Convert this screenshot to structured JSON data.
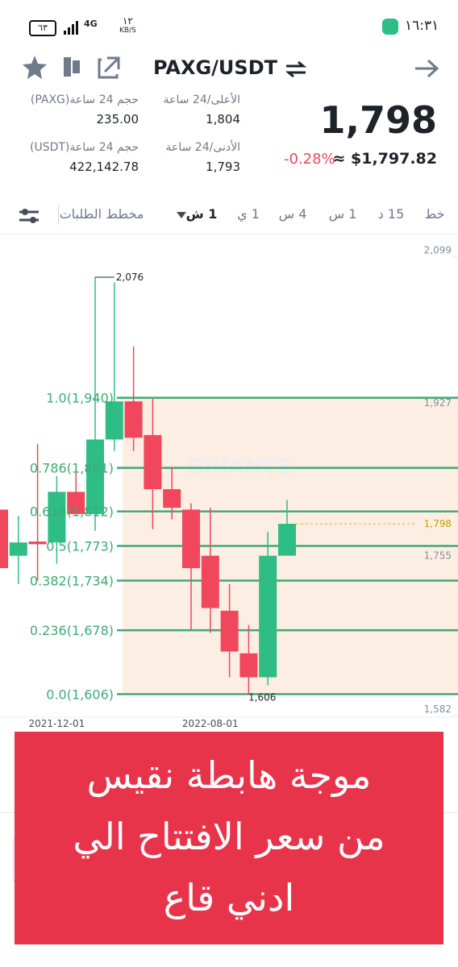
{
  "status_bar": {
    "time": "١٦:٣١",
    "battery": "٦٣",
    "network": "4G",
    "speed_value": "١٢",
    "speed_unit": "KB/S"
  },
  "header": {
    "pair": "PAXG/USDT"
  },
  "stats": {
    "volume_base_label": "حجم 24 ساعة(PAXG)",
    "volume_base": "235.00",
    "volume_quote_label": "حجم 24 ساعة(USDT)",
    "volume_quote": "422,142.78",
    "high_label": "الأعلى/24 ساعة",
    "high": "1,804",
    "low_label": "الأدنى/24 ساعة",
    "low": "1,793",
    "price": "1,798",
    "change": "-0.28%",
    "price_usd": "≈ $1,797.82"
  },
  "tabs": [
    "خط",
    "15 د",
    "1 س",
    "4 س",
    "1 ي",
    "1 ش",
    "مخطط الطلبات"
  ],
  "chart_data": {
    "type": "candlestick",
    "categories": [
      null,
      null,
      null,
      "2021-12-01",
      null,
      null,
      null,
      null,
      null,
      null,
      null,
      "2022-08-01",
      null,
      null,
      null,
      null
    ],
    "open": [
      1814,
      1762,
      1778,
      1777,
      1834,
      1809,
      1893,
      1936,
      1898,
      1837,
      1814,
      1762,
      1700,
      1652,
      1625,
      1762
    ],
    "high": [
      1848,
      1807,
      1888,
      1852,
      1862,
      2076,
      2070,
      1998,
      1939,
      1862,
      1821,
      1816,
      1730,
      1684,
      1789,
      1825
    ],
    "low": [
      1725,
      1730,
      1734,
      1753,
      1807,
      1790,
      1880,
      1880,
      1792,
      1803,
      1678,
      1675,
      1625,
      1606,
      1616,
      1762
    ],
    "close": [
      1748,
      1777,
      1775,
      1834,
      1809,
      1893,
      1936,
      1895,
      1837,
      1816,
      1748,
      1703,
      1654,
      1625,
      1762,
      1798
    ],
    "up_color": "#2ebd85",
    "down_color": "#f0475c",
    "ylim": [
      1580,
      2125
    ],
    "yticks": [
      {
        "value": 2099,
        "label": "2,099"
      },
      {
        "value": 1927,
        "label": "1,927"
      },
      {
        "value": 1755,
        "label": "1,755"
      },
      {
        "value": 1582,
        "label": "1,582"
      }
    ],
    "fib_color": "#3dab74",
    "fib_levels": [
      {
        "label": "1.0(1,940)",
        "value": 1940
      },
      {
        "label": "0.786(1,861)",
        "value": 1861
      },
      {
        "label": "0.618(1,812)",
        "value": 1812
      },
      {
        "label": "0.5(1,773)",
        "value": 1773
      },
      {
        "label": "0.382(1,734)",
        "value": 1734
      },
      {
        "label": "0.236(1,678)",
        "value": 1678
      },
      {
        "label": "0.0(1,606)",
        "value": 1606
      }
    ],
    "high_marker": {
      "value": 2076,
      "label": "2,076"
    },
    "low_marker": {
      "value": 1606,
      "label": "1,606"
    },
    "last_price": {
      "value": 1798,
      "label": "1,798"
    },
    "watermark": "BINANCE"
  },
  "banner": {
    "lines": [
      "موجة هابطة نقيس",
      "من سعر الافتتاح الي",
      "ادني قاع"
    ]
  }
}
